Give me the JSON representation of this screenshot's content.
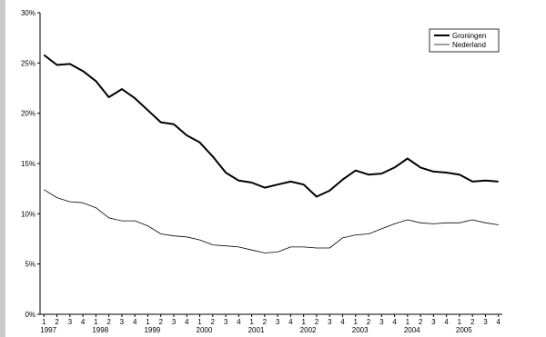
{
  "chart_data": {
    "type": "line",
    "title": "",
    "xlabel": "",
    "ylabel": "",
    "x_quarter_labels": [
      "1",
      "2",
      "3",
      "4",
      "1",
      "2",
      "3",
      "4",
      "1",
      "2",
      "3",
      "4",
      "1",
      "2",
      "3",
      "4",
      "1",
      "2",
      "3",
      "4",
      "1",
      "2",
      "3",
      "4",
      "1",
      "2",
      "3",
      "4",
      "1",
      "2",
      "3",
      "4",
      "1",
      "2",
      "3",
      "4"
    ],
    "x_year_labels": [
      "1997",
      "1998",
      "1999",
      "2000",
      "2001",
      "2002",
      "2003",
      "2004",
      "2005"
    ],
    "y_ticks": [
      0,
      5,
      10,
      15,
      20,
      25,
      30
    ],
    "y_tick_labels": [
      "0%",
      "5%",
      "10%",
      "15%",
      "20%",
      "25%",
      "30%"
    ],
    "ylim": [
      0,
      30
    ],
    "grid": false,
    "legend_position": "top-right",
    "series": [
      {
        "name": "Groningen",
        "color": "#000000",
        "line_weight": "bold",
        "values": [
          25.8,
          24.8,
          24.9,
          24.2,
          23.2,
          21.6,
          22.4,
          21.5,
          20.3,
          19.1,
          18.9,
          17.8,
          17.1,
          15.7,
          14.1,
          13.3,
          13.1,
          12.6,
          12.9,
          13.2,
          12.9,
          11.7,
          12.3,
          13.4,
          14.3,
          13.9,
          14.0,
          14.6,
          15.5,
          14.6,
          14.2,
          14.1,
          13.9,
          13.2,
          13.3,
          13.2
        ]
      },
      {
        "name": "Nederland",
        "color": "#000000",
        "line_weight": "thin",
        "values": [
          12.4,
          11.6,
          11.2,
          11.1,
          10.6,
          9.6,
          9.3,
          9.3,
          8.8,
          8.0,
          7.8,
          7.7,
          7.4,
          6.9,
          6.8,
          6.7,
          6.4,
          6.1,
          6.2,
          6.7,
          6.7,
          6.6,
          6.6,
          7.6,
          7.9,
          8.0,
          8.5,
          9.0,
          9.4,
          9.1,
          9.0,
          9.1,
          9.1,
          9.4,
          9.1,
          8.9
        ]
      }
    ]
  }
}
